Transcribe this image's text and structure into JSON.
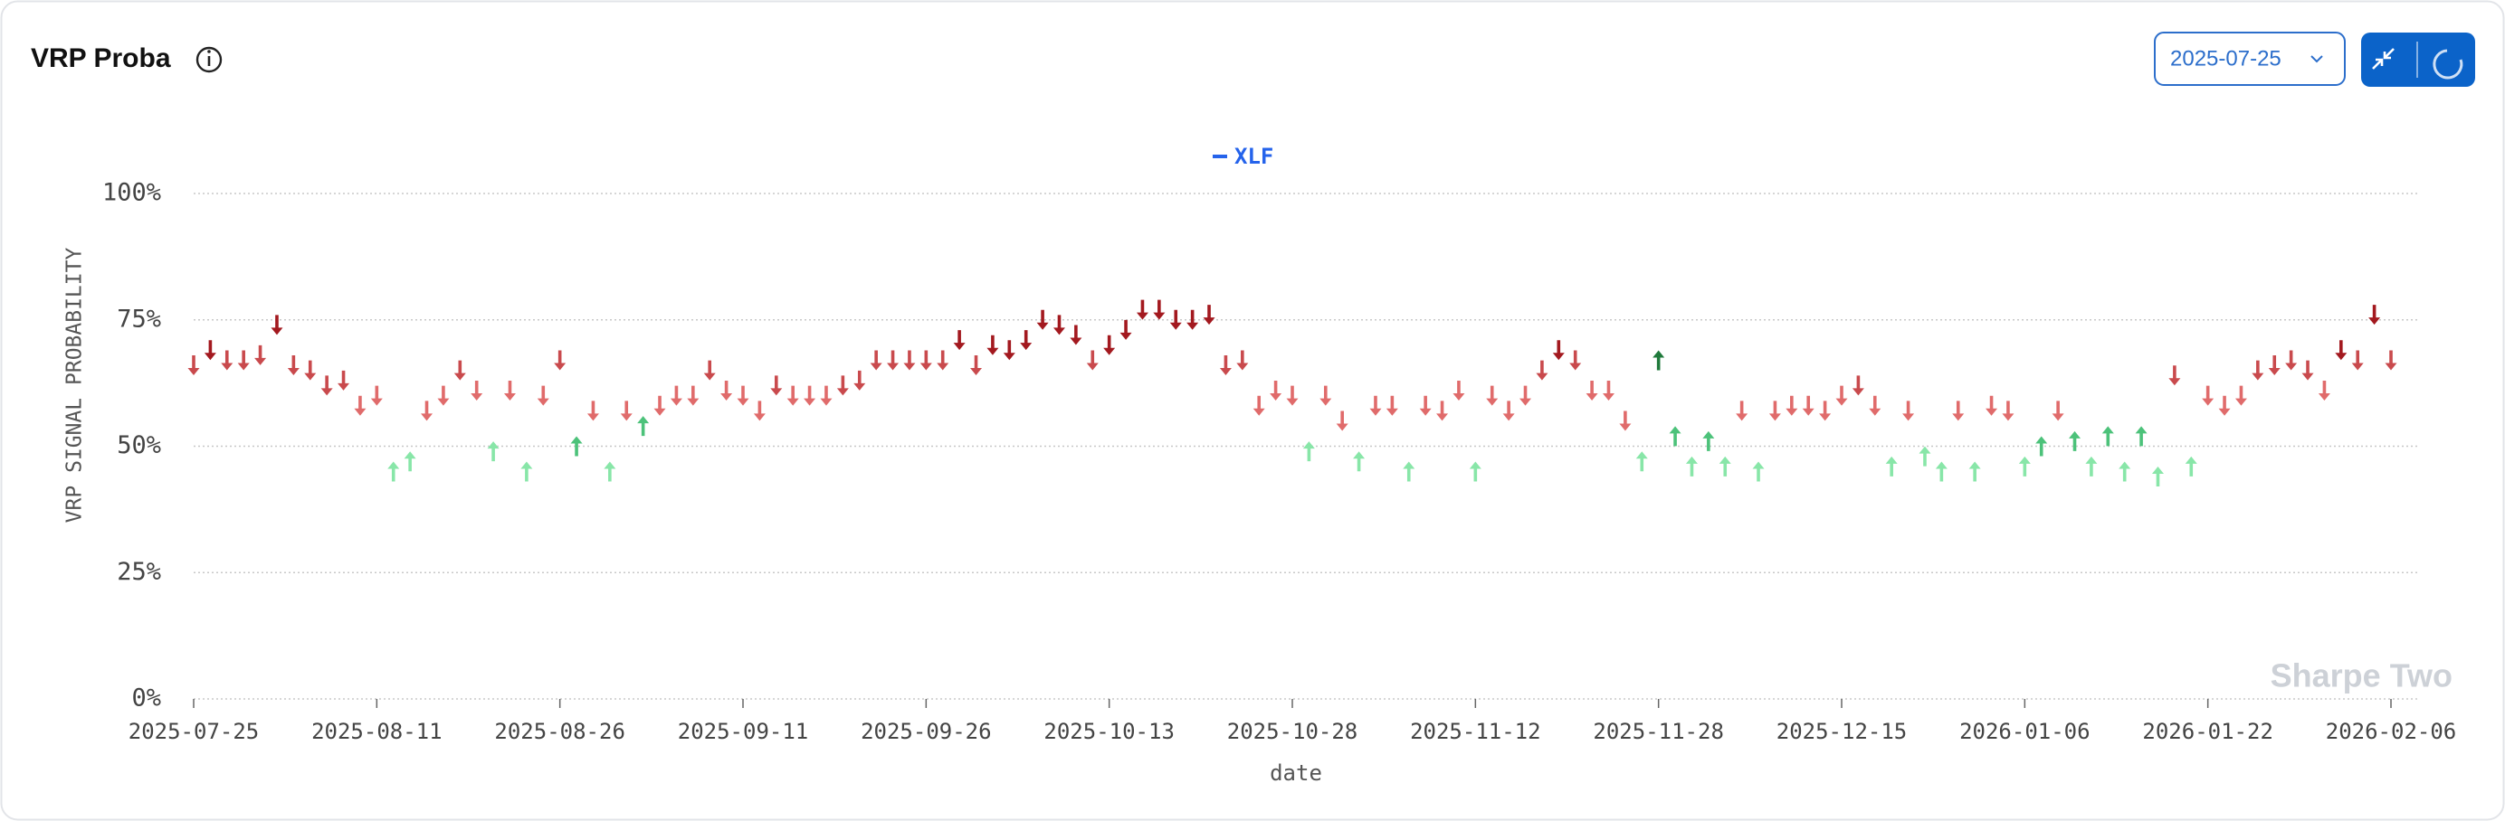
{
  "header": {
    "title": "VRP Proba",
    "date": "2025-07-25"
  },
  "chart_data": {
    "type": "arrow-scatter",
    "watermark": "Sharpe Two",
    "x_label": "date",
    "y_label": "VRP SIGNAL PROBABILITY",
    "categories": [
      "2025-07-25",
      null,
      null,
      null,
      null,
      null,
      null,
      null,
      null,
      null,
      null,
      "2025-08-11",
      null,
      null,
      null,
      null,
      null,
      null,
      null,
      null,
      null,
      null,
      "2025-08-26",
      null,
      null,
      null,
      null,
      null,
      null,
      null,
      null,
      null,
      null,
      "2025-09-11",
      null,
      null,
      null,
      null,
      null,
      null,
      null,
      null,
      null,
      null,
      "2025-09-26",
      null,
      null,
      null,
      null,
      null,
      null,
      null,
      null,
      null,
      null,
      "2025-10-13",
      null,
      null,
      null,
      null,
      null,
      null,
      null,
      null,
      null,
      null,
      "2025-10-28",
      null,
      null,
      null,
      null,
      null,
      null,
      null,
      null,
      null,
      null,
      "2025-11-12",
      null,
      null,
      null,
      null,
      null,
      null,
      null,
      null,
      null,
      null,
      "2025-11-28",
      null,
      null,
      null,
      null,
      null,
      null,
      null,
      null,
      null,
      null,
      "2025-12-15",
      null,
      null,
      null,
      null,
      null,
      null,
      null,
      null,
      null,
      null,
      "2026-01-06",
      null,
      null,
      null,
      null,
      null,
      null,
      null,
      null,
      null,
      null,
      "2026-01-22",
      null,
      null,
      null,
      null,
      null,
      null,
      null,
      null,
      null,
      null,
      "2026-02-06"
    ],
    "ylim": [
      0,
      100
    ],
    "yticks": [
      {
        "value": 0,
        "label": "0%"
      },
      {
        "value": 25,
        "label": "25%"
      },
      {
        "value": 50,
        "label": "50%"
      },
      {
        "value": 75,
        "label": "75%"
      },
      {
        "value": 100,
        "label": "100%"
      }
    ],
    "grid": true,
    "series": [
      {
        "name": "XLF",
        "color": "#2563eb",
        "values": [
          66,
          69,
          67,
          67,
          68,
          74,
          66,
          65,
          62,
          63,
          58,
          60,
          45,
          47,
          57,
          60,
          65,
          61,
          49,
          61,
          45,
          60,
          67,
          50,
          57,
          45,
          57,
          54,
          58,
          60,
          60,
          65,
          61,
          60,
          57,
          62,
          60,
          60,
          60,
          62,
          63,
          67,
          67,
          67,
          67,
          67,
          71,
          66,
          70,
          69,
          71,
          75,
          74,
          72,
          67,
          70,
          73,
          77,
          77,
          75,
          75,
          76,
          66,
          67,
          58,
          61,
          60,
          49,
          60,
          55,
          47,
          58,
          58,
          45,
          58,
          57,
          61,
          45,
          60,
          57,
          60,
          65,
          69,
          67,
          61,
          61,
          55,
          47,
          67,
          52,
          46,
          51,
          46,
          57,
          45,
          57,
          58,
          58,
          57,
          60,
          62,
          58,
          46,
          57,
          48,
          45,
          57,
          45,
          58,
          57,
          46,
          50,
          57,
          51,
          46,
          52,
          45,
          52,
          44,
          64,
          46,
          60,
          58,
          60,
          65,
          66,
          67,
          65,
          61,
          69,
          67,
          76,
          67
        ],
        "markers": [
          "down",
          "down",
          "down",
          "down",
          "down",
          "down",
          "down",
          "down",
          "down",
          "down",
          "down",
          "down",
          "up",
          "up",
          "down",
          "down",
          "down",
          "down",
          "up",
          "down",
          "up",
          "down",
          "down",
          "up",
          "down",
          "up",
          "down",
          "up",
          "down",
          "down",
          "down",
          "down",
          "down",
          "down",
          "down",
          "down",
          "down",
          "down",
          "down",
          "down",
          "down",
          "down",
          "down",
          "down",
          "down",
          "down",
          "down",
          "down",
          "down",
          "down",
          "down",
          "down",
          "down",
          "down",
          "down",
          "down",
          "down",
          "down",
          "down",
          "down",
          "down",
          "down",
          "down",
          "down",
          "down",
          "down",
          "down",
          "up",
          "down",
          "down",
          "up",
          "down",
          "down",
          "up",
          "down",
          "down",
          "down",
          "up",
          "down",
          "down",
          "down",
          "down",
          "down",
          "down",
          "down",
          "down",
          "down",
          "up",
          "up",
          "up",
          "up",
          "up",
          "up",
          "down",
          "up",
          "down",
          "down",
          "down",
          "down",
          "down",
          "down",
          "down",
          "up",
          "down",
          "up",
          "up",
          "down",
          "up",
          "down",
          "down",
          "up",
          "up",
          "down",
          "up",
          "up",
          "up",
          "up",
          "up",
          "up",
          "down",
          "up",
          "down",
          "down",
          "down",
          "down",
          "down",
          "down",
          "down",
          "down",
          "down",
          "down",
          "down",
          "down"
        ],
        "colors": [
          "#c94a4d",
          "#a3191f",
          "#c94a4d",
          "#c94a4d",
          "#c94a4d",
          "#a3191f",
          "#c94a4d",
          "#c94a4d",
          "#c94a4d",
          "#c94a4d",
          "#e06b6b",
          "#e06b6b",
          "#88e6a8",
          "#88e6a8",
          "#e06b6b",
          "#e06b6b",
          "#c94a4d",
          "#e06b6b",
          "#88e6a8",
          "#e06b6b",
          "#88e6a8",
          "#e06b6b",
          "#c94a4d",
          "#4cc27a",
          "#e06b6b",
          "#88e6a8",
          "#e06b6b",
          "#4cc27a",
          "#e06b6b",
          "#e06b6b",
          "#e06b6b",
          "#c94a4d",
          "#e06b6b",
          "#e06b6b",
          "#e06b6b",
          "#c94a4d",
          "#e06b6b",
          "#e06b6b",
          "#e06b6b",
          "#c94a4d",
          "#c94a4d",
          "#c94a4d",
          "#c94a4d",
          "#c94a4d",
          "#c94a4d",
          "#c94a4d",
          "#a3191f",
          "#c94a4d",
          "#a3191f",
          "#a3191f",
          "#a3191f",
          "#a3191f",
          "#a3191f",
          "#a3191f",
          "#c94a4d",
          "#a3191f",
          "#a3191f",
          "#a3191f",
          "#a3191f",
          "#a3191f",
          "#a3191f",
          "#a3191f",
          "#c94a4d",
          "#c94a4d",
          "#e06b6b",
          "#e06b6b",
          "#e06b6b",
          "#88e6a8",
          "#e06b6b",
          "#e06b6b",
          "#88e6a8",
          "#e06b6b",
          "#e06b6b",
          "#88e6a8",
          "#e06b6b",
          "#e06b6b",
          "#e06b6b",
          "#88e6a8",
          "#e06b6b",
          "#e06b6b",
          "#e06b6b",
          "#c94a4d",
          "#a3191f",
          "#c94a4d",
          "#e06b6b",
          "#e06b6b",
          "#e06b6b",
          "#88e6a8",
          "#1f7a3b",
          "#4cc27a",
          "#88e6a8",
          "#4cc27a",
          "#88e6a8",
          "#e06b6b",
          "#88e6a8",
          "#e06b6b",
          "#e06b6b",
          "#e06b6b",
          "#e06b6b",
          "#e06b6b",
          "#c94a4d",
          "#e06b6b",
          "#88e6a8",
          "#e06b6b",
          "#88e6a8",
          "#88e6a8",
          "#e06b6b",
          "#88e6a8",
          "#e06b6b",
          "#e06b6b",
          "#88e6a8",
          "#4cc27a",
          "#e06b6b",
          "#4cc27a",
          "#88e6a8",
          "#4cc27a",
          "#88e6a8",
          "#4cc27a",
          "#88e6a8",
          "#c94a4d",
          "#88e6a8",
          "#e06b6b",
          "#e06b6b",
          "#e06b6b",
          "#c94a4d",
          "#c94a4d",
          "#c94a4d",
          "#c94a4d",
          "#e06b6b",
          "#a3191f",
          "#c94a4d",
          "#a3191f",
          "#c94a4d"
        ]
      }
    ]
  }
}
